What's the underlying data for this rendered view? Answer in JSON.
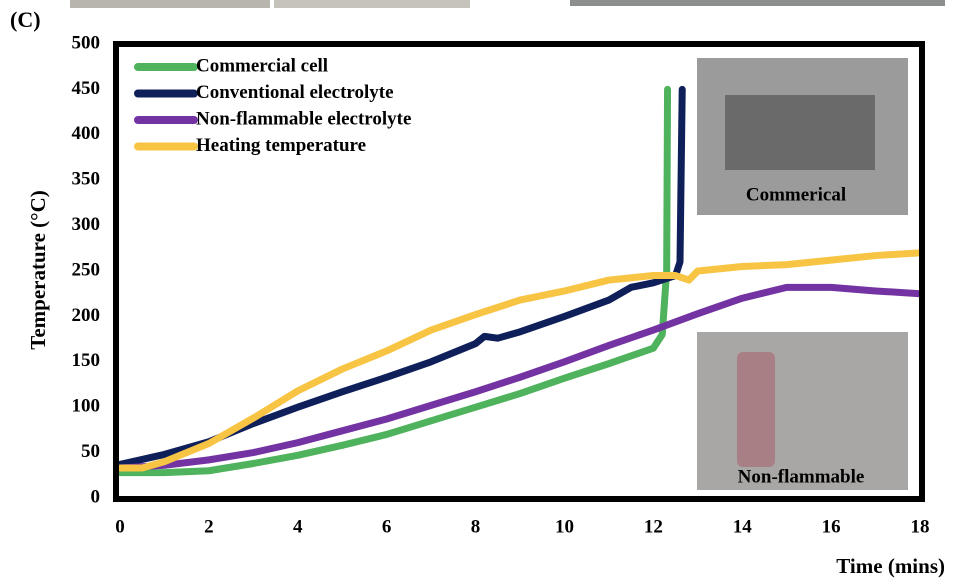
{
  "chart_data": {
    "type": "line",
    "panel_label": "(C)",
    "xlabel": "Time (mins)",
    "ylabel": "Temperature (°C)",
    "xlim": [
      0,
      18
    ],
    "ylim": [
      0,
      500
    ],
    "xticks": [
      0,
      2,
      4,
      6,
      8,
      10,
      12,
      14,
      16,
      18
    ],
    "yticks": [
      0,
      50,
      100,
      150,
      200,
      250,
      300,
      350,
      400,
      450,
      500
    ],
    "grid": false,
    "legend": "upper left",
    "annotations": [
      "Commerical",
      "Non-flammable"
    ],
    "series": [
      {
        "name": "Commercial cell",
        "color": "#4fb25c",
        "x": [
          0,
          1,
          2,
          3,
          4,
          5,
          6,
          7,
          8,
          9,
          10,
          11,
          12,
          12.2,
          12.3,
          12.32
        ],
        "values": [
          28,
          28,
          30,
          38,
          47,
          58,
          70,
          85,
          100,
          115,
          132,
          148,
          165,
          180,
          250,
          450
        ]
      },
      {
        "name": "Conventional electrolyte",
        "color": "#0f1f5a",
        "x": [
          0,
          1,
          2,
          3,
          4,
          5,
          6,
          7,
          8,
          8.2,
          8.5,
          9,
          10,
          11,
          11.5,
          12,
          12.5,
          12.6,
          12.65
        ],
        "values": [
          37,
          48,
          62,
          82,
          100,
          117,
          133,
          150,
          170,
          178,
          176,
          183,
          200,
          218,
          232,
          237,
          245,
          260,
          450
        ]
      },
      {
        "name": "Non-flammable electrolyte",
        "color": "#7433a3",
        "x": [
          0,
          1,
          2,
          3,
          4,
          5,
          6,
          7,
          8,
          9,
          10,
          11,
          12,
          13,
          14,
          15,
          16,
          17,
          18
        ],
        "values": [
          33,
          36,
          42,
          50,
          61,
          74,
          87,
          102,
          117,
          133,
          150,
          168,
          185,
          203,
          220,
          232,
          232,
          228,
          225
        ]
      },
      {
        "name": "Heating temperature",
        "color": "#f8c444",
        "x": [
          0,
          0.5,
          1,
          2,
          3,
          4,
          5,
          6,
          7,
          8,
          9,
          10,
          11,
          12,
          12.5,
          12.8,
          13,
          14,
          15,
          16,
          17,
          18
        ],
        "values": [
          33,
          33,
          40,
          60,
          88,
          118,
          142,
          162,
          185,
          202,
          218,
          228,
          240,
          245,
          245,
          240,
          250,
          255,
          257,
          262,
          267,
          270
        ]
      }
    ]
  }
}
